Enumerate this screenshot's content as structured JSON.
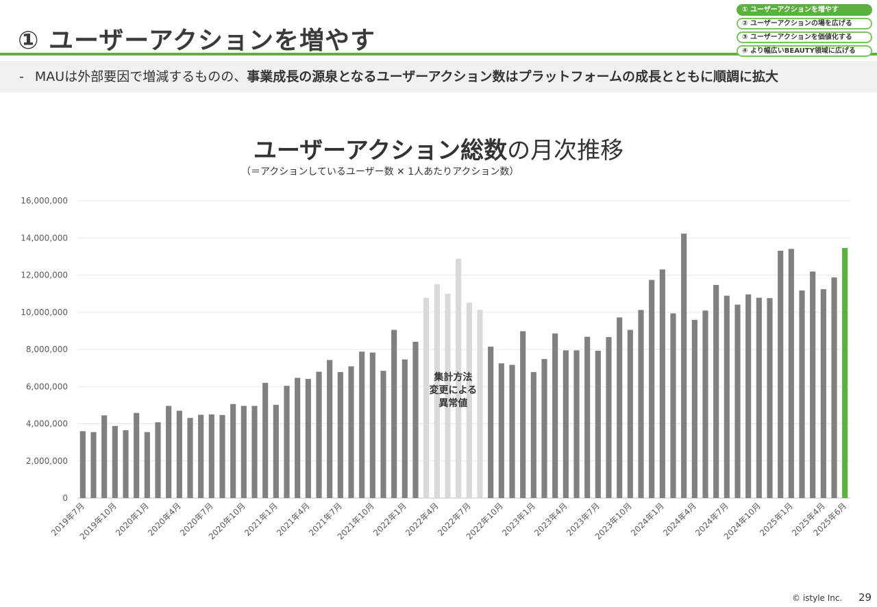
{
  "header": {
    "title": "① ユーザーアクションを増やす",
    "nav": [
      "① ユーザーアクションを増やす",
      "② ユーザーアクションの場を広げる",
      "③ ユーザーアクションを価値化する",
      "④ より幅広いBEAUTY領域に広げる"
    ],
    "active_nav": 0
  },
  "summary": {
    "prefix": "-",
    "normal": "MAUは外部要因で増減するものの、",
    "bold": "事業成長の源泉となるユーザーアクション数はプラットフォームの成長とともに順調に拡大"
  },
  "chart_title": {
    "bold": "ユーザーアクション総数",
    "normal": "の月次推移",
    "subtitle": "（＝アクションしているユーザー数 ✕ 1人あたりアクション数）"
  },
  "footer": {
    "copyright": "© istyle Inc.",
    "page": "29"
  },
  "chart_data": {
    "type": "bar",
    "ylim": [
      0,
      16000000
    ],
    "yticks": [
      0,
      2000000,
      4000000,
      6000000,
      8000000,
      10000000,
      12000000,
      14000000,
      16000000
    ],
    "ytick_labels": [
      "0",
      "2,000,000",
      "4,000,000",
      "6,000,000",
      "8,000,000",
      "10,000,000",
      "12,000,000",
      "14,000,000",
      "16,000,000"
    ],
    "categories": [
      "2019年7月",
      "2019年8月",
      "2019年9月",
      "2019年10月",
      "2019年11月",
      "2019年12月",
      "2020年1月",
      "2020年2月",
      "2020年3月",
      "2020年4月",
      "2020年5月",
      "2020年6月",
      "2020年7月",
      "2020年8月",
      "2020年9月",
      "2020年10月",
      "2020年11月",
      "2020年12月",
      "2021年1月",
      "2021年2月",
      "2021年3月",
      "2021年4月",
      "2021年5月",
      "2021年6月",
      "2021年7月",
      "2021年8月",
      "2021年9月",
      "2021年10月",
      "2021年11月",
      "2021年12月",
      "2022年1月",
      "2022年2月",
      "2022年3月",
      "2022年4月",
      "2022年5月",
      "2022年6月",
      "2022年7月",
      "2022年8月",
      "2022年9月",
      "2022年10月",
      "2022年11月",
      "2022年12月",
      "2023年1月",
      "2023年2月",
      "2023年3月",
      "2023年4月",
      "2023年5月",
      "2023年6月",
      "2023年7月",
      "2023年8月",
      "2023年9月",
      "2023年10月",
      "2023年11月",
      "2023年12月",
      "2024年1月",
      "2024年2月",
      "2024年3月",
      "2024年4月",
      "2024年5月",
      "2024年6月",
      "2024年7月",
      "2024年8月",
      "2024年9月",
      "2024年10月",
      "2024年11月",
      "2024年12月",
      "2025年1月",
      "2025年2月",
      "2025年3月",
      "2025年4月",
      "2025年5月",
      "2025年6月"
    ],
    "visible_labels": [
      "2019年7月",
      "2019年10月",
      "2020年1月",
      "2020年4月",
      "2020年7月",
      "2020年10月",
      "2021年1月",
      "2021年4月",
      "2021年7月",
      "2021年10月",
      "2022年1月",
      "2022年4月",
      "2022年7月",
      "2022年10月",
      "2023年1月",
      "2023年4月",
      "2023年7月",
      "2023年10月",
      "2024年1月",
      "2024年4月",
      "2024年7月",
      "2024年10月",
      "2025年1月",
      "2025年4月",
      "2025年6月"
    ],
    "values": [
      3600000,
      3550000,
      4450000,
      3880000,
      3650000,
      4580000,
      3550000,
      4080000,
      4960000,
      4700000,
      4310000,
      4480000,
      4500000,
      4470000,
      5060000,
      4960000,
      4960000,
      6200000,
      5020000,
      6040000,
      6470000,
      6410000,
      6800000,
      7430000,
      6780000,
      7090000,
      7880000,
      7830000,
      6850000,
      9050000,
      7460000,
      8410000,
      10780000,
      11510000,
      11000000,
      12880000,
      10520000,
      10130000,
      8150000,
      7250000,
      7170000,
      8980000,
      6780000,
      7480000,
      8860000,
      7950000,
      7950000,
      8680000,
      7930000,
      8660000,
      9720000,
      9050000,
      10120000,
      11740000,
      12300000,
      9940000,
      14230000,
      9590000,
      10090000,
      11470000,
      10890000,
      10410000,
      10960000,
      10780000,
      10760000,
      13310000,
      13410000,
      11170000,
      12190000,
      11240000,
      11870000,
      13460000
    ],
    "anomaly_range": [
      "2022年3月",
      "2022年8月"
    ],
    "highlight": "2025年6月",
    "annotation": [
      "集計方法",
      "変更による",
      "異常値"
    ],
    "colors": {
      "bar": "#808080",
      "anomaly": "#d9d9d9",
      "highlight": "#5bb040",
      "grid": "#e8e8e8"
    },
    "grid": true,
    "legend": false
  }
}
